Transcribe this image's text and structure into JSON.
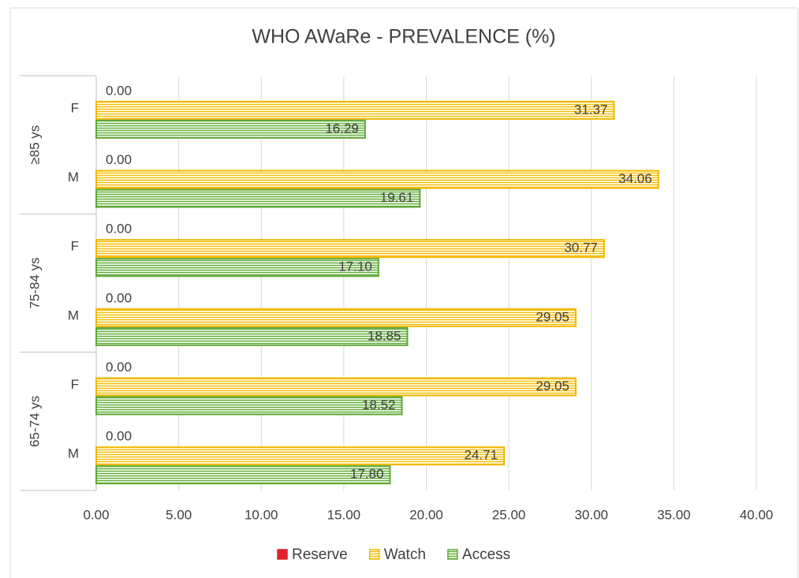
{
  "chart_data": {
    "type": "bar",
    "orientation": "horizontal",
    "title": "WHO AWaRe - PREVALENCE (%)",
    "category_groups": [
      "≥85 ys",
      "75-84 ys",
      "65-74 ys"
    ],
    "categories": [
      "F",
      "M",
      "F",
      "M",
      "F",
      "M"
    ],
    "series": [
      {
        "name": "Reserve",
        "color": "#e0202a",
        "fill": "#e0202a",
        "label_position": "outside_end",
        "values": [
          0,
          0,
          0,
          0,
          0,
          0
        ],
        "value_labels": [
          "0.00",
          "0.00",
          "0.00",
          "0.00",
          "0.00",
          "0.00"
        ]
      },
      {
        "name": "Watch",
        "color": "#f2b800",
        "fill": "#fff4cc",
        "label_position": "inside_end",
        "values": [
          31.37,
          34.06,
          30.77,
          29.05,
          29.05,
          24.71
        ],
        "value_labels": [
          "31.37",
          "34.06",
          "30.77",
          "29.05",
          "29.05",
          "24.71"
        ]
      },
      {
        "name": "Access",
        "color": "#5fa83a",
        "fill": "#dcefd0",
        "label_position": "inside_end",
        "values": [
          16.29,
          19.61,
          17.1,
          18.85,
          18.52,
          17.8
        ],
        "value_labels": [
          "16.29",
          "19.61",
          "17.10",
          "18.85",
          "18.52",
          "17.80"
        ]
      }
    ],
    "xlim": [
      0,
      40
    ],
    "xticks": [
      {
        "value": 0,
        "label": "0.00"
      },
      {
        "value": 5,
        "label": "5.00"
      },
      {
        "value": 10,
        "label": "10.00"
      },
      {
        "value": 15,
        "label": "15.00"
      },
      {
        "value": 20,
        "label": "20.00"
      },
      {
        "value": 25,
        "label": "25.00"
      },
      {
        "value": 30,
        "label": "30.00"
      },
      {
        "value": 35,
        "label": "35.00"
      },
      {
        "value": 40,
        "label": "40.00"
      }
    ],
    "grid": true,
    "legend": "bottom"
  }
}
